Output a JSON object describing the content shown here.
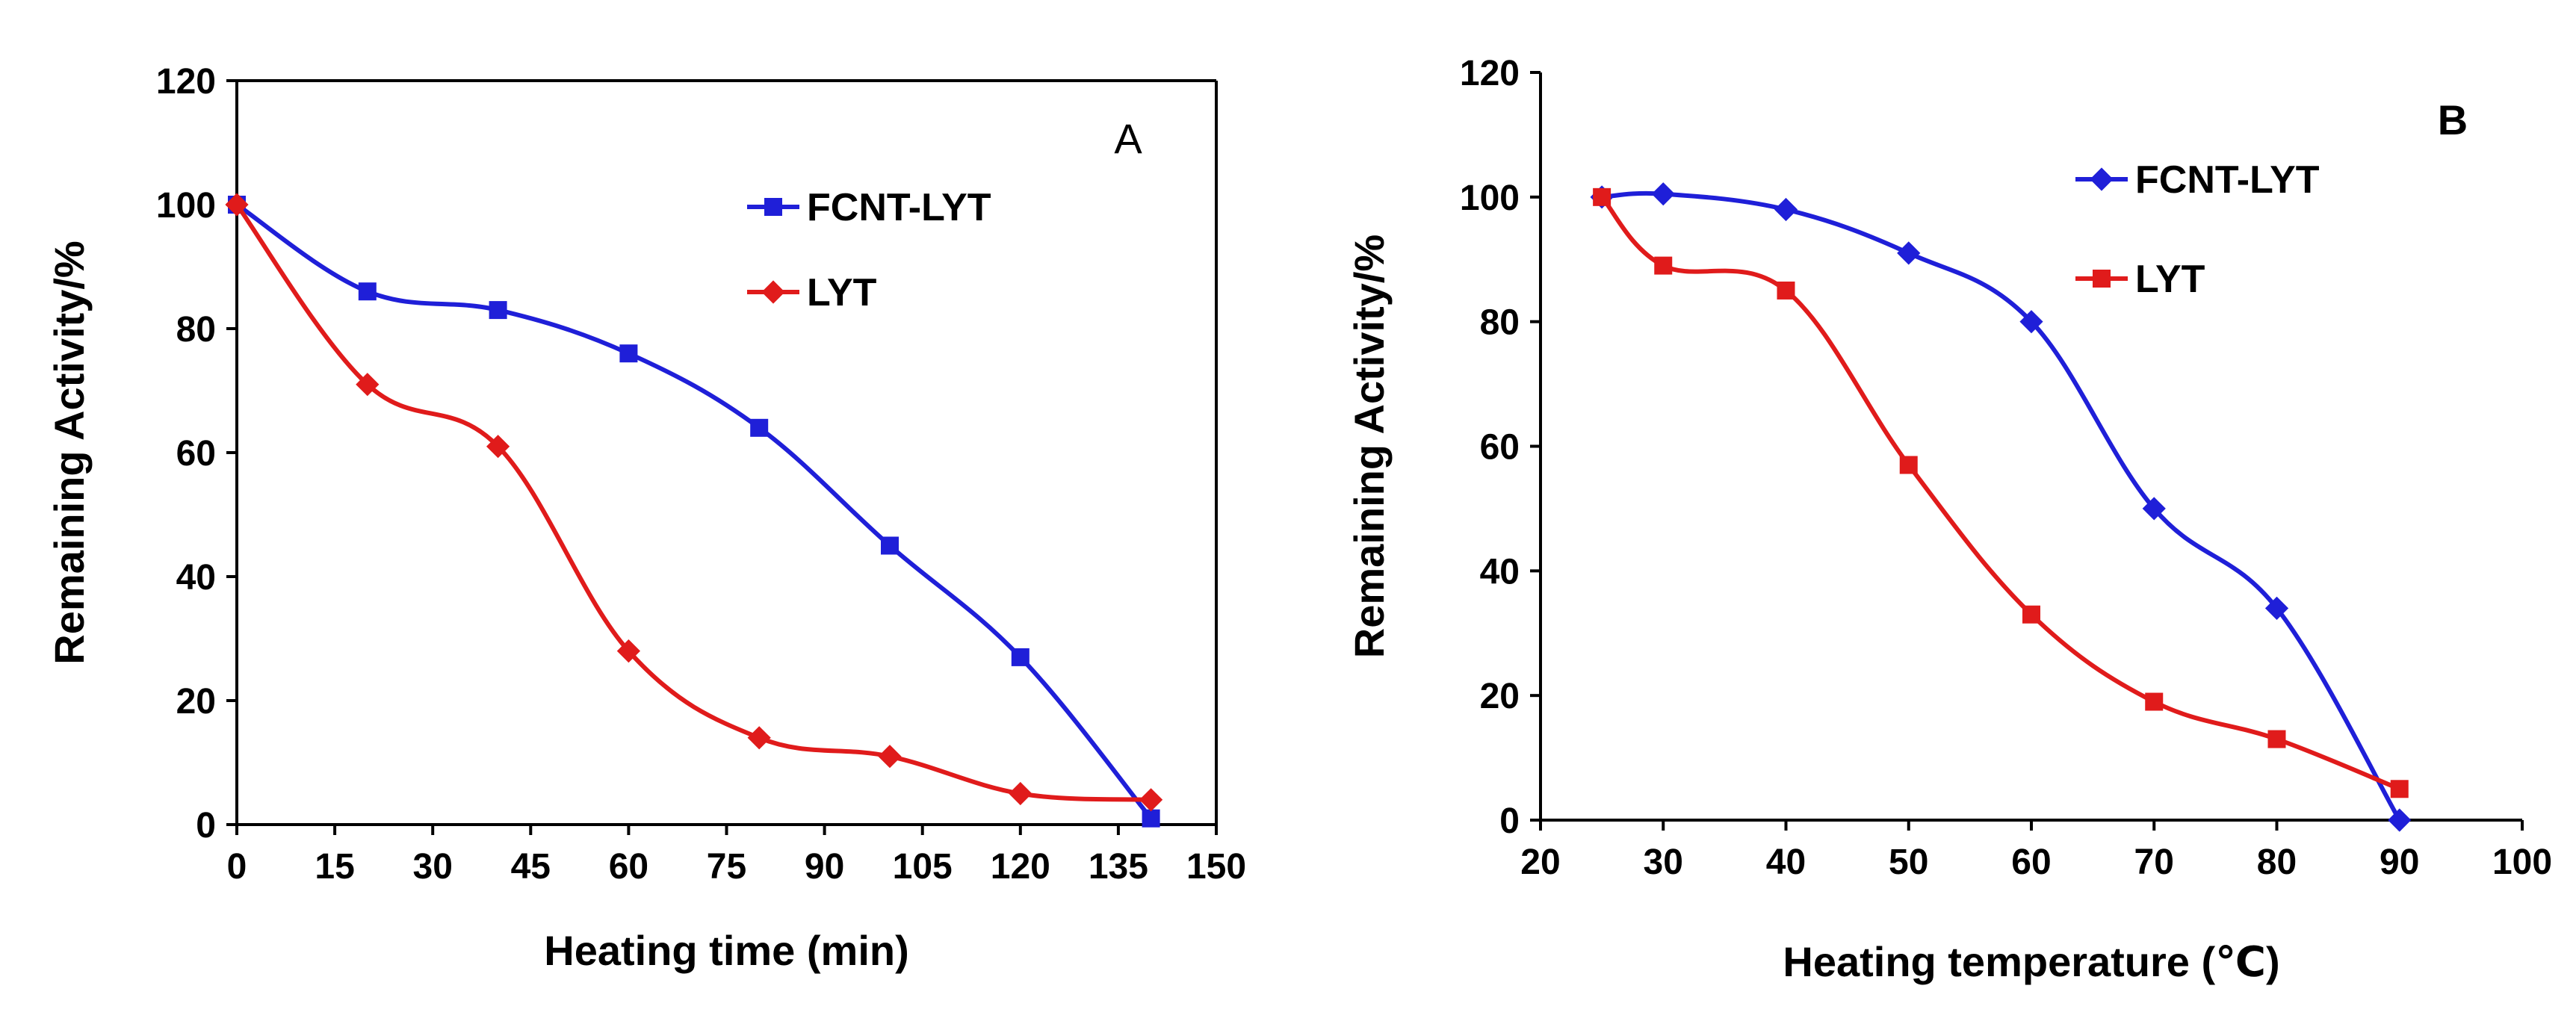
{
  "chart_data": [
    {
      "type": "line",
      "panel_label": "A",
      "xlabel": "Heating time (min)",
      "ylabel": "Remaining Activity/%",
      "xlim": [
        0,
        150
      ],
      "ylim": [
        0,
        120
      ],
      "xticks": [
        0,
        15,
        30,
        45,
        60,
        75,
        90,
        105,
        120,
        135,
        150
      ],
      "yticks": [
        0,
        20,
        40,
        60,
        80,
        100,
        120
      ],
      "grid": false,
      "legend": "top-right",
      "series": [
        {
          "name": "FCNT-LYT",
          "color": "#1f1fd8",
          "marker": "square",
          "x": [
            0,
            20,
            40,
            60,
            80,
            100,
            120,
            140
          ],
          "values": [
            100,
            86,
            83,
            76,
            64,
            45,
            27,
            1
          ]
        },
        {
          "name": "LYT",
          "color": "#e01b1b",
          "marker": "diamond",
          "x": [
            0,
            20,
            40,
            60,
            80,
            100,
            120,
            140
          ],
          "values": [
            100,
            71,
            61,
            28,
            14,
            11,
            5,
            4
          ]
        }
      ]
    },
    {
      "type": "line",
      "panel_label": "B",
      "xlabel": "Heating temperature (℃)",
      "ylabel": "Remaining Activity/%",
      "xlim": [
        20,
        100
      ],
      "ylim": [
        0,
        120
      ],
      "xticks": [
        20,
        30,
        40,
        50,
        60,
        70,
        80,
        90,
        100
      ],
      "yticks": [
        0,
        20,
        40,
        60,
        80,
        100,
        120
      ],
      "grid": false,
      "legend": "top-right",
      "series": [
        {
          "name": "FCNT-LYT",
          "color": "#1f1fd8",
          "marker": "diamond",
          "x": [
            25,
            30,
            40,
            50,
            60,
            70,
            80,
            90
          ],
          "values": [
            100,
            100.5,
            98,
            91,
            80,
            50,
            34,
            0
          ]
        },
        {
          "name": "LYT",
          "color": "#e01b1b",
          "marker": "square",
          "x": [
            25,
            30,
            40,
            50,
            60,
            70,
            80,
            90
          ],
          "values": [
            100,
            89,
            85,
            57,
            33,
            19,
            13,
            5
          ]
        }
      ]
    }
  ]
}
